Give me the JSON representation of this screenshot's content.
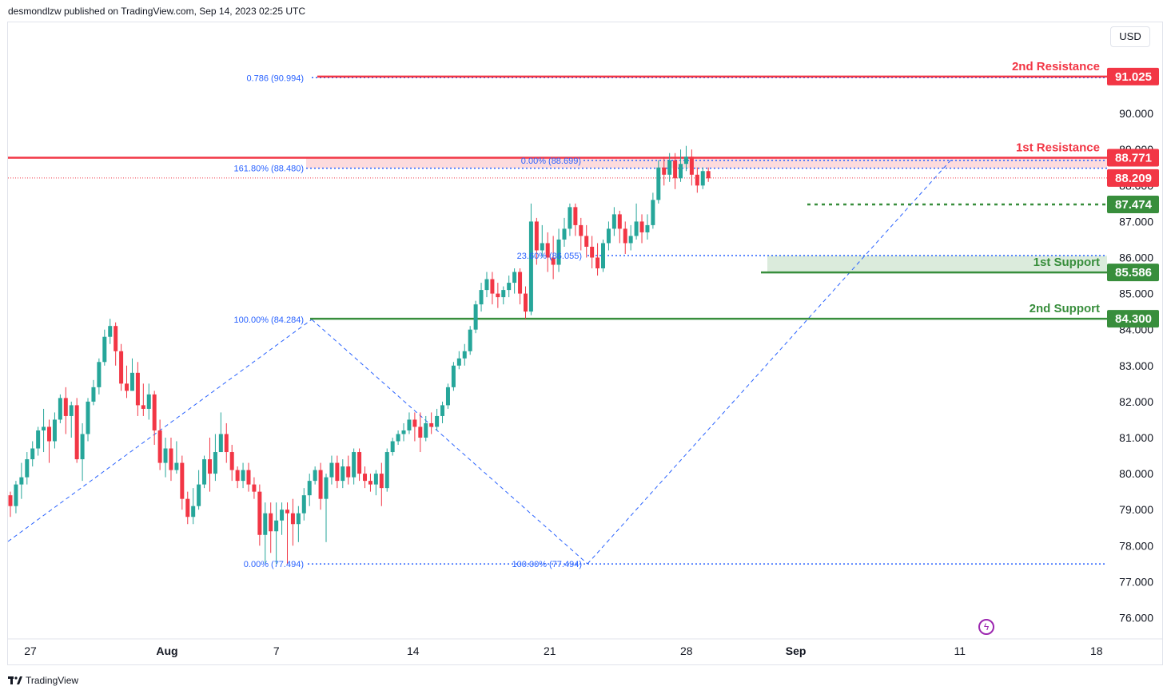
{
  "header": {
    "published_by": "desmondlzw published on TradingView.com, Sep 14, 2023 02:25 UTC"
  },
  "currency_button": "USD",
  "footer": {
    "brand": "TradingView"
  },
  "chart_data": {
    "type": "candlestick",
    "instrument_currency": "USD",
    "y_axis": {
      "ticks": [
        "76.000",
        "77.000",
        "78.000",
        "79.000",
        "80.000",
        "81.000",
        "82.000",
        "83.000",
        "84.000",
        "85.000",
        "86.000",
        "87.000",
        "88.000",
        "89.000",
        "90.000"
      ],
      "range": [
        75.5,
        91.8
      ]
    },
    "x_axis": {
      "ticks": [
        {
          "label": "27",
          "idx": 0
        },
        {
          "label": "Aug",
          "idx": 5,
          "bold": true
        },
        {
          "label": "7",
          "idx": 9
        },
        {
          "label": "14",
          "idx": 14
        },
        {
          "label": "21",
          "idx": 19
        },
        {
          "label": "28",
          "idx": 24
        },
        {
          "label": "Sep",
          "idx": 28,
          "bold": true
        },
        {
          "label": "11",
          "idx": 34
        },
        {
          "label": "18",
          "idx": 39
        }
      ]
    },
    "colors": {
      "up": "#26a69a",
      "down": "#f23645",
      "resistance": "#f23645",
      "support": "#388e3c",
      "fib": "#2962ff",
      "fib_text": "#2962ff",
      "marker": "#9c27b0"
    },
    "levels": [
      {
        "name": "2nd Resistance",
        "label": "2nd Resistance",
        "value": 91.025,
        "price_label": "91.025",
        "color": "#f23645"
      },
      {
        "name": "1st Resistance",
        "label": "1st Resistance",
        "value": 88.771,
        "price_label": "88.771",
        "color": "#f23645"
      },
      {
        "name": "Last Price",
        "label": "",
        "value": 88.209,
        "price_label": "88.209",
        "color": "#f23645"
      },
      {
        "name": "Pivot",
        "label": "",
        "value": 87.474,
        "price_label": "87.474",
        "color": "#388e3c"
      },
      {
        "name": "1st Support",
        "label": "1st Support",
        "value": 85.586,
        "price_label": "85.586",
        "color": "#388e3c"
      },
      {
        "name": "2nd Support",
        "label": "2nd Support",
        "value": 84.3,
        "price_label": "84.300",
        "color": "#388e3c"
      }
    ],
    "fib_labels": [
      {
        "text": "0.786 (90.994)",
        "value": 90.994
      },
      {
        "text": "0.00% (88.699)",
        "value": 88.699
      },
      {
        "text": "161.80% (88.480)",
        "value": 88.48
      },
      {
        "text": "23.60% (86.055)",
        "value": 86.055
      },
      {
        "text": "100.00% (84.284)",
        "value": 84.284
      },
      {
        "text": "0.00% (77.494)",
        "value": 77.494
      },
      {
        "text": "100.00% (77.494)",
        "value": 77.494
      }
    ],
    "candles": [
      [
        79.4,
        79.1,
        79.5,
        78.8
      ],
      [
        79.1,
        79.7,
        79.8,
        78.9
      ],
      [
        79.7,
        79.9,
        80.3,
        79.3
      ],
      [
        79.9,
        80.4,
        80.6,
        79.7
      ],
      [
        80.4,
        80.7,
        80.9,
        80.2
      ],
      [
        80.7,
        81.2,
        81.3,
        80.5
      ],
      [
        81.2,
        81.3,
        81.8,
        80.6
      ],
      [
        81.3,
        80.9,
        81.5,
        80.3
      ],
      [
        80.9,
        81.5,
        81.7,
        80.7
      ],
      [
        81.5,
        82.1,
        82.2,
        81.4
      ],
      [
        82.1,
        81.6,
        82.4,
        81.1
      ],
      [
        81.6,
        81.9,
        82.0,
        81.0
      ],
      [
        81.9,
        80.4,
        82.1,
        80.3
      ],
      [
        80.4,
        81.1,
        81.4,
        79.8
      ],
      [
        81.1,
        82.0,
        82.1,
        80.9
      ],
      [
        82.0,
        82.4,
        82.6,
        81.9
      ],
      [
        82.4,
        83.1,
        83.2,
        82.2
      ],
      [
        83.1,
        83.8,
        84.0,
        83.0
      ],
      [
        83.8,
        84.1,
        84.3,
        83.6
      ],
      [
        84.1,
        83.4,
        84.2,
        83.0
      ],
      [
        83.4,
        82.5,
        83.6,
        82.3
      ],
      [
        82.5,
        82.3,
        83.0,
        82.1
      ],
      [
        82.3,
        82.8,
        83.2,
        82.3
      ],
      [
        82.8,
        81.9,
        83.1,
        81.6
      ],
      [
        81.9,
        81.8,
        82.5,
        81.6
      ],
      [
        81.8,
        82.2,
        82.5,
        81.5
      ],
      [
        82.2,
        81.2,
        82.3,
        80.8
      ],
      [
        81.2,
        80.3,
        81.5,
        80.1
      ],
      [
        80.3,
        80.7,
        81.0,
        79.9
      ],
      [
        80.7,
        80.1,
        81.0,
        79.8
      ],
      [
        80.1,
        80.3,
        80.9,
        80.0
      ],
      [
        80.3,
        79.3,
        80.5,
        79.0
      ],
      [
        79.3,
        78.8,
        79.5,
        78.6
      ],
      [
        78.8,
        79.1,
        79.6,
        78.6
      ],
      [
        79.1,
        79.7,
        80.1,
        79.0
      ],
      [
        79.7,
        80.4,
        80.5,
        79.6
      ],
      [
        80.4,
        80.0,
        81.0,
        79.5
      ],
      [
        80.0,
        80.6,
        81.1,
        79.8
      ],
      [
        80.6,
        81.1,
        81.7,
        80.6
      ],
      [
        81.1,
        80.6,
        81.4,
        80.3
      ],
      [
        80.6,
        80.1,
        80.8,
        79.8
      ],
      [
        80.1,
        79.8,
        80.2,
        79.6
      ],
      [
        79.8,
        80.1,
        80.3,
        79.6
      ],
      [
        80.1,
        79.7,
        80.3,
        79.5
      ],
      [
        79.7,
        79.5,
        79.9,
        79.3
      ],
      [
        79.5,
        78.3,
        79.7,
        78.0
      ],
      [
        78.3,
        78.9,
        79.2,
        77.5
      ],
      [
        78.9,
        78.4,
        79.2,
        77.8
      ],
      [
        78.4,
        78.7,
        79.2,
        77.5
      ],
      [
        78.7,
        79.0,
        79.2,
        78.3
      ],
      [
        79.0,
        78.9,
        79.2,
        77.5
      ],
      [
        78.9,
        78.6,
        79.3,
        78.0
      ],
      [
        78.6,
        78.9,
        79.1,
        78.1
      ],
      [
        78.9,
        79.4,
        79.6,
        78.7
      ],
      [
        79.4,
        79.8,
        80.0,
        79.1
      ],
      [
        79.8,
        80.1,
        80.2,
        79.7
      ],
      [
        80.1,
        79.3,
        80.3,
        79.0
      ],
      [
        79.3,
        79.9,
        80.0,
        78.1
      ],
      [
        79.9,
        80.3,
        80.5,
        79.7
      ],
      [
        80.3,
        79.8,
        80.5,
        79.6
      ],
      [
        79.8,
        80.2,
        80.4,
        79.6
      ],
      [
        80.2,
        79.9,
        80.5,
        79.7
      ],
      [
        79.9,
        80.6,
        80.7,
        79.7
      ],
      [
        80.6,
        80.0,
        80.7,
        79.8
      ],
      [
        80.0,
        79.8,
        80.2,
        79.6
      ],
      [
        79.8,
        79.7,
        80.0,
        79.5
      ],
      [
        79.7,
        80.0,
        80.1,
        79.4
      ],
      [
        80.0,
        79.6,
        80.3,
        79.1
      ],
      [
        79.6,
        80.6,
        80.7,
        79.5
      ],
      [
        80.6,
        80.9,
        81.0,
        80.5
      ],
      [
        80.9,
        81.1,
        81.2,
        80.8
      ],
      [
        81.1,
        81.2,
        81.4,
        80.9
      ],
      [
        81.2,
        81.5,
        81.7,
        81.1
      ],
      [
        81.5,
        81.3,
        81.7,
        80.9
      ],
      [
        81.3,
        81.0,
        81.7,
        80.6
      ],
      [
        81.0,
        81.4,
        81.6,
        80.9
      ],
      [
        81.4,
        81.3,
        81.7,
        81.1
      ],
      [
        81.3,
        81.6,
        81.8,
        81.2
      ],
      [
        81.6,
        81.9,
        82.0,
        81.4
      ],
      [
        81.9,
        82.4,
        82.5,
        81.8
      ],
      [
        82.4,
        83.0,
        83.1,
        82.3
      ],
      [
        83.0,
        83.2,
        83.4,
        82.9
      ],
      [
        83.2,
        83.4,
        83.6,
        83.0
      ],
      [
        83.4,
        84.0,
        84.1,
        83.3
      ],
      [
        84.0,
        84.7,
        84.8,
        83.9
      ],
      [
        84.7,
        85.1,
        85.3,
        84.5
      ],
      [
        85.1,
        85.4,
        85.6,
        84.9
      ],
      [
        85.4,
        85.0,
        85.6,
        84.7
      ],
      [
        85.0,
        84.9,
        85.3,
        84.6
      ],
      [
        84.9,
        85.1,
        85.2,
        84.7
      ],
      [
        85.1,
        85.3,
        85.5,
        84.9
      ],
      [
        85.3,
        85.6,
        85.7,
        85.0
      ],
      [
        85.6,
        85.0,
        85.7,
        84.7
      ],
      [
        85.0,
        84.5,
        85.2,
        84.3
      ],
      [
        84.5,
        87.0,
        87.5,
        84.4
      ],
      [
        87.0,
        86.2,
        87.1,
        85.8
      ],
      [
        86.2,
        86.4,
        86.9,
        86.0
      ],
      [
        86.4,
        86.0,
        86.7,
        85.6
      ],
      [
        86.0,
        85.8,
        86.6,
        85.4
      ],
      [
        85.8,
        86.5,
        86.8,
        85.6
      ],
      [
        86.5,
        86.8,
        87.1,
        86.3
      ],
      [
        86.8,
        87.4,
        87.5,
        86.6
      ],
      [
        87.4,
        86.9,
        87.5,
        86.6
      ],
      [
        86.9,
        86.6,
        87.1,
        86.2
      ],
      [
        86.6,
        86.3,
        86.9,
        86.0
      ],
      [
        86.3,
        86.0,
        86.6,
        85.7
      ],
      [
        86.0,
        85.7,
        86.4,
        85.5
      ],
      [
        85.7,
        86.4,
        86.5,
        85.6
      ],
      [
        86.4,
        86.8,
        87.0,
        86.2
      ],
      [
        86.8,
        87.2,
        87.4,
        86.6
      ],
      [
        87.2,
        86.8,
        87.3,
        86.4
      ],
      [
        86.8,
        86.4,
        87.0,
        86.1
      ],
      [
        86.4,
        86.6,
        86.9,
        86.2
      ],
      [
        86.6,
        87.0,
        87.5,
        86.5
      ],
      [
        87.0,
        86.7,
        87.2,
        86.4
      ],
      [
        86.7,
        86.9,
        87.2,
        86.5
      ],
      [
        86.9,
        87.6,
        87.8,
        86.8
      ],
      [
        87.6,
        88.5,
        88.7,
        87.5
      ],
      [
        88.5,
        88.3,
        88.8,
        88.0
      ],
      [
        88.3,
        88.7,
        88.9,
        88.1
      ],
      [
        88.7,
        88.2,
        88.9,
        87.9
      ],
      [
        88.2,
        88.6,
        89.0,
        88.1
      ],
      [
        88.6,
        88.8,
        89.1,
        88.4
      ],
      [
        88.8,
        88.3,
        89.0,
        88.0
      ],
      [
        88.3,
        88.0,
        88.5,
        87.8
      ],
      [
        88.0,
        88.4,
        88.5,
        87.9
      ],
      [
        88.4,
        88.2,
        88.5,
        88.1
      ]
    ]
  }
}
